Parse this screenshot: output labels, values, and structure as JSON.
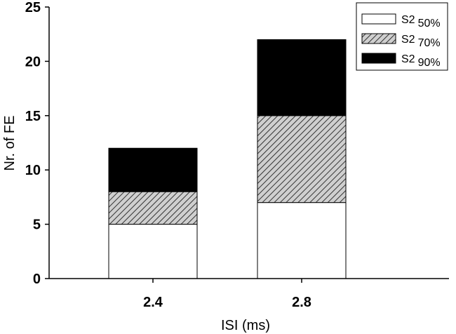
{
  "chart_data": {
    "type": "bar",
    "stacked": true,
    "categories": [
      "2.4",
      "2.8"
    ],
    "series": [
      {
        "name": "S2",
        "name_sub": "50%",
        "fill": "white",
        "values": [
          5,
          7
        ]
      },
      {
        "name": "S2",
        "name_sub": "70%",
        "fill": "hatched",
        "values": [
          3,
          8
        ]
      },
      {
        "name": "S2",
        "name_sub": "90%",
        "fill": "black",
        "values": [
          4,
          7
        ]
      }
    ],
    "xlabel": "ISI (ms)",
    "ylabel": "Nr. of FE",
    "ylim": [
      0,
      25
    ],
    "yticks": [
      0,
      5,
      10,
      15,
      20,
      25
    ],
    "legend_position": "top-right",
    "grid": false,
    "colors": {
      "white": "#ffffff",
      "hatch_bg": "#cfcfcf",
      "hatch_line": "#333333",
      "black": "#000000"
    }
  }
}
